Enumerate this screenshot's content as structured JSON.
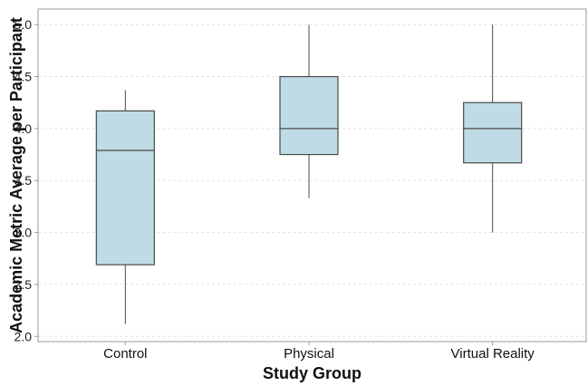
{
  "chart_data": {
    "type": "box",
    "xlabel": "Study Group",
    "ylabel": "Academic Metric Average per Participant",
    "ylim": [
      1.95,
      5.15
    ],
    "yticks": [
      2.0,
      2.5,
      3.0,
      3.5,
      4.0,
      4.5,
      5.0
    ],
    "ytick_labels": [
      "2.0",
      "2.5",
      "3.0",
      "3.5",
      "4.0",
      "4.5",
      "5.0"
    ],
    "grid": true,
    "categories": [
      "Control",
      "Physical",
      "Virtual Reality"
    ],
    "boxes": [
      {
        "category": "Control",
        "whisker_low": 2.12,
        "q1": 2.69,
        "median": 3.79,
        "q3": 4.17,
        "whisker_high": 4.37
      },
      {
        "category": "Physical",
        "whisker_low": 3.33,
        "q1": 3.75,
        "median": 4.0,
        "q3": 4.5,
        "whisker_high": 5.0
      },
      {
        "category": "Virtual Reality",
        "whisker_low": 3.0,
        "q1": 3.67,
        "median": 4.0,
        "q3": 4.25,
        "whisker_high": 5.0
      }
    ],
    "colors": {
      "box_fill": "#bfdce6",
      "box_stroke": "#4a4a4a",
      "whisker": "#4a4a4a",
      "grid": "#e2e2e2",
      "frame": "#9a9a9a"
    }
  }
}
